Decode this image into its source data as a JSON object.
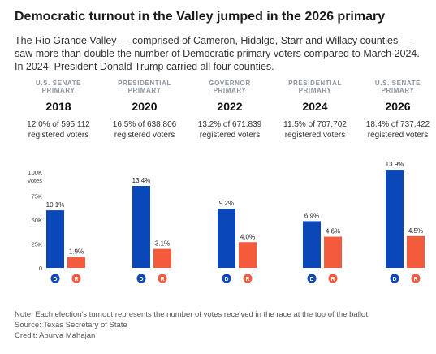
{
  "title": "Democratic turnout in the Valley jumped in the 2026 primary",
  "subtitle": "The Rio Grande Valley — comprised of Cameron, Hidalgo, Starr and Willacy counties — saw more than double the number of Democratic primary voters compared to March 2024. In 2024, President Donald Trump carried all four counties.",
  "elections": [
    {
      "race": "U.S. SENATE PRIMARY",
      "year": "2018",
      "turnout_line1": "12.0% of 595,112",
      "turnout_line2": "registered voters"
    },
    {
      "race": "PRESIDENTIAL PRIMARY",
      "year": "2020",
      "turnout_line1": "16.5% of 638,806",
      "turnout_line2": "registered voters"
    },
    {
      "race": "GOVERNOR PRIMARY",
      "year": "2022",
      "turnout_line1": "13.2% of 671,839",
      "turnout_line2": "registered voters"
    },
    {
      "race": "PRESIDENTIAL PRIMARY",
      "year": "2024",
      "turnout_line1": "11.5% of 707,702",
      "turnout_line2": "registered voters"
    },
    {
      "race": "U.S. SENATE PRIMARY",
      "year": "2026",
      "turnout_line1": "18.4% of 737,422",
      "turnout_line2": "registered voters"
    }
  ],
  "chart_data": {
    "type": "bar",
    "categories": [
      "2018",
      "2020",
      "2022",
      "2024",
      "2026"
    ],
    "series": [
      {
        "name": "D",
        "color": "#0a47b8",
        "values": [
          60100,
          85600,
          61800,
          48800,
          102500
        ],
        "labels": [
          "10.1%",
          "13.4%",
          "9.2%",
          "6.9%",
          "13.9%"
        ]
      },
      {
        "name": "R",
        "color": "#f45a3c",
        "values": [
          11300,
          19800,
          26900,
          32600,
          33200
        ],
        "labels": [
          "1.9%",
          "3.1%",
          "4.0%",
          "4.6%",
          "4.5%"
        ]
      }
    ],
    "ylim": [
      0,
      100000
    ],
    "yticks": [
      0,
      25000,
      50000,
      75000,
      100000
    ],
    "ytick_labels": [
      "0",
      "25K",
      "50K",
      "75K",
      "100K"
    ],
    "ylabel": "votes",
    "grid": false
  },
  "footer": {
    "note": "Note: Each election's turnout represents the number of votes received in the race at the top of the ballot.",
    "source": "Source: Texas Secretary of State",
    "credit": "Credit: Apurva Mahajan"
  }
}
